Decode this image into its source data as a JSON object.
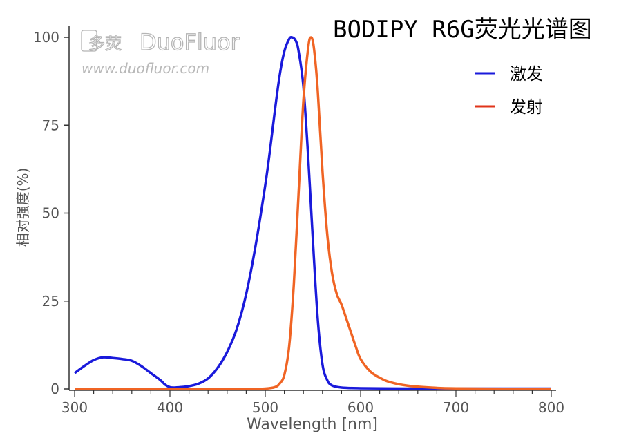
{
  "watermark": {
    "brand": "DuoFluor",
    "brand_cn": "多荧",
    "url": "www.duofluor.com"
  },
  "chart_data": {
    "type": "line",
    "title": "BODIPY R6G荧光光谱图",
    "xlabel": "Wavelength [nm]",
    "ylabel": "相对强度(%)",
    "xlim": [
      300,
      800
    ],
    "ylim": [
      0,
      100
    ],
    "xticks": [
      300,
      400,
      500,
      600,
      700,
      800
    ],
    "yticks": [
      0,
      25,
      50,
      75,
      100
    ],
    "grid": false,
    "legend_position": "top-right",
    "series": [
      {
        "name": "激发",
        "color": "#1a1adb",
        "x": [
          300,
          310,
          320,
          330,
          340,
          350,
          360,
          370,
          380,
          390,
          395,
          400,
          405,
          410,
          420,
          430,
          440,
          450,
          460,
          470,
          480,
          490,
          500,
          505,
          510,
          515,
          520,
          525,
          528,
          532,
          535,
          540,
          545,
          550,
          555,
          560,
          565,
          570,
          580,
          600,
          650,
          700,
          800
        ],
        "y": [
          4.5,
          6.5,
          8.2,
          9.0,
          8.8,
          8.5,
          8.0,
          6.5,
          4.5,
          2.5,
          1.2,
          0.5,
          0.4,
          0.5,
          0.8,
          1.5,
          3.0,
          6.0,
          10.5,
          17.0,
          27.0,
          41.0,
          58.0,
          68.0,
          79.0,
          89.0,
          96.0,
          99.5,
          100,
          99.0,
          96.0,
          86.0,
          66.0,
          42.0,
          20.0,
          7.0,
          2.5,
          1.0,
          0.4,
          0.2,
          0.1,
          0.1,
          0.1
        ]
      },
      {
        "name": "发射",
        "color": "#f06424",
        "x": [
          300,
          400,
          480,
          500,
          510,
          515,
          520,
          525,
          530,
          535,
          540,
          545,
          548,
          551,
          555,
          560,
          565,
          570,
          575,
          580,
          585,
          590,
          595,
          600,
          610,
          620,
          630,
          650,
          680,
          700,
          750,
          800
        ],
        "y": [
          0,
          0,
          0,
          0.1,
          0.5,
          1.5,
          4.0,
          12.0,
          30.0,
          56.0,
          82.0,
          97.0,
          100,
          97.0,
          85.0,
          62.0,
          44.0,
          33.0,
          27.0,
          24.0,
          20.0,
          16.0,
          12.0,
          8.5,
          5.0,
          3.2,
          2.0,
          0.9,
          0.3,
          0.15,
          0.05,
          0
        ]
      }
    ]
  }
}
